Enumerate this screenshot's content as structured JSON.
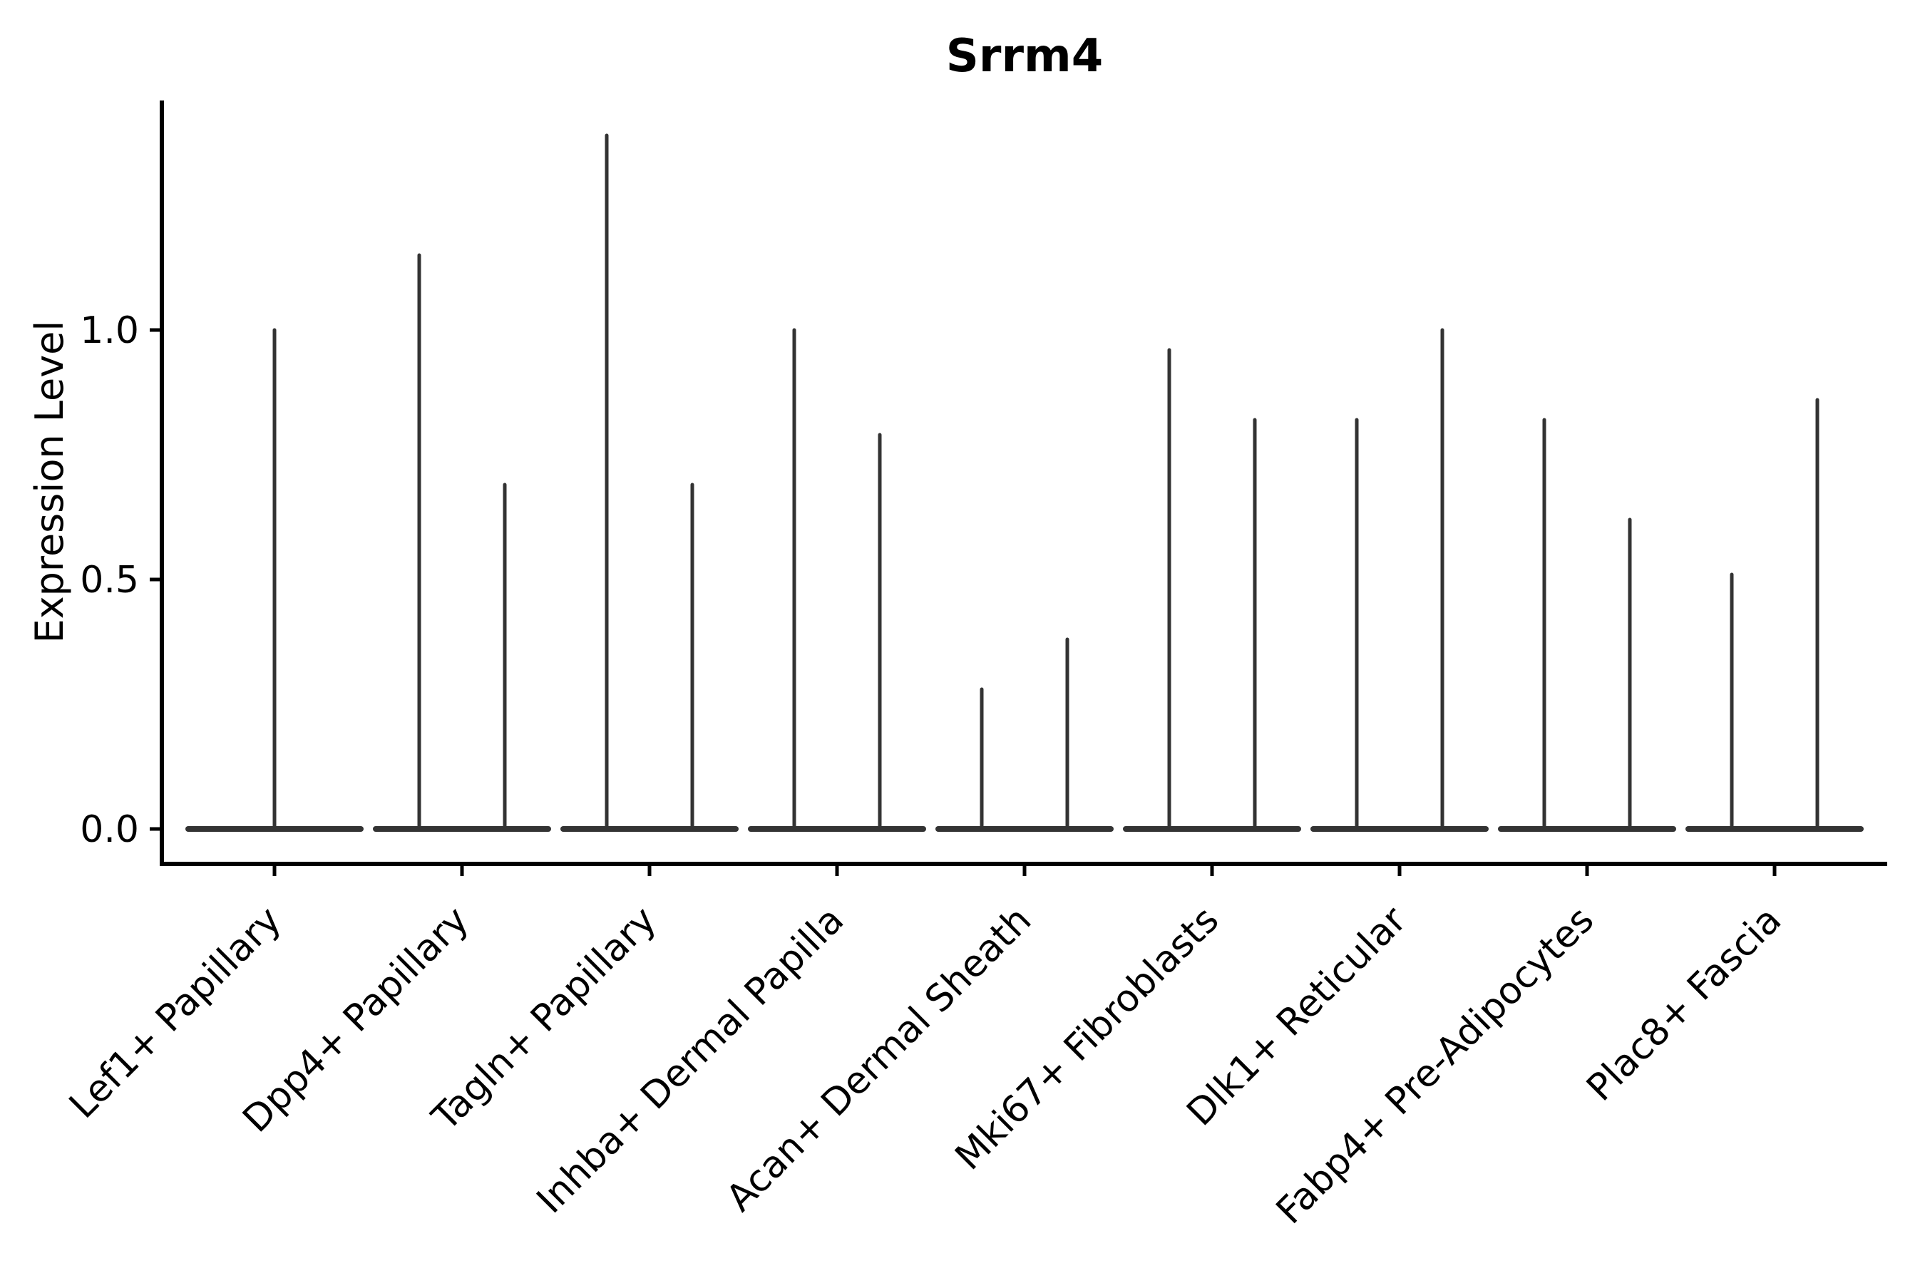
{
  "chart_data": {
    "type": "violin",
    "title": "Srrm4",
    "xlabel": "",
    "ylabel": "Expression Level",
    "grid": false,
    "legend": null,
    "background": "#ffffff",
    "ylim": [
      -0.07,
      1.46
    ],
    "yticks": [
      {
        "value": 0.0,
        "label": "0.0"
      },
      {
        "value": 0.5,
        "label": "0.5"
      },
      {
        "value": 1.0,
        "label": "1.0"
      }
    ],
    "categories": [
      "Lef1+ Papillary",
      "Dpp4+ Papillary",
      "Tagln+ Papillary",
      "Inhba+ Dermal Papilla",
      "Acan+ Dermal Sheath",
      "Mki67+ Fibroblasts",
      "Dlk1+ Reticular",
      "Fabp4+ Pre-Adipocytes",
      "Plac8+ Fascia"
    ],
    "violins": [
      {
        "category": "Lef1+ Papillary",
        "body_value": 0.0,
        "tail_maxima": [
          1.0
        ]
      },
      {
        "category": "Dpp4+ Papillary",
        "body_value": 0.0,
        "tail_maxima": [
          1.15,
          0.69
        ]
      },
      {
        "category": "Tagln+ Papillary",
        "body_value": 0.0,
        "tail_maxima": [
          1.39,
          0.69
        ]
      },
      {
        "category": "Inhba+ Dermal Papilla",
        "body_value": 0.0,
        "tail_maxima": [
          1.0,
          0.79
        ]
      },
      {
        "category": "Acan+ Dermal Sheath",
        "body_value": 0.0,
        "tail_maxima": [
          0.28,
          0.38
        ]
      },
      {
        "category": "Mki67+ Fibroblasts",
        "body_value": 0.0,
        "tail_maxima": [
          0.96,
          0.82
        ]
      },
      {
        "category": "Dlk1+ Reticular",
        "body_value": 0.0,
        "tail_maxima": [
          0.82,
          1.0
        ]
      },
      {
        "category": "Fabp4+ Pre-Adipocytes",
        "body_value": 0.0,
        "tail_maxima": [
          0.82,
          0.62
        ]
      },
      {
        "category": "Plac8+ Fascia",
        "body_value": 0.0,
        "tail_maxima": [
          0.51,
          0.86
        ]
      }
    ],
    "colors": {
      "violin_line": "#333333",
      "axis": "#000000",
      "text": "#000000",
      "background": "#ffffff"
    }
  }
}
